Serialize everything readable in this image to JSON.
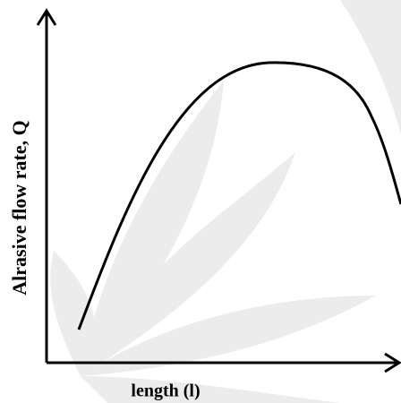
{
  "axes": {
    "y_label": "Alrasive flow rate, Q",
    "x_label": "length (l)"
  }
}
